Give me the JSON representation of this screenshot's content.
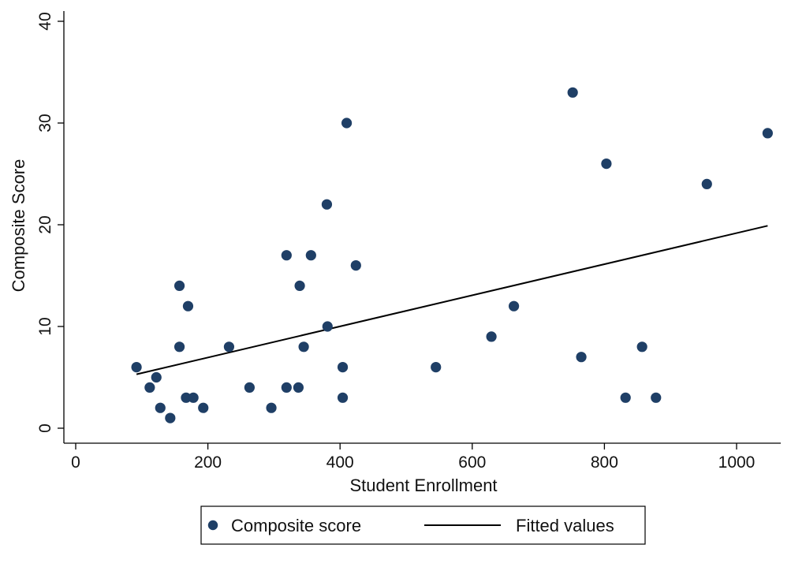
{
  "chart_data": {
    "type": "scatter",
    "title": "",
    "xlabel": "Student Enrollment",
    "ylabel": "Composite Score",
    "xlim": [
      0,
      1060
    ],
    "ylim": [
      0,
      40
    ],
    "xticks": [
      0,
      200,
      400,
      600,
      800,
      1000
    ],
    "yticks": [
      0,
      10,
      20,
      30,
      40
    ],
    "grid": false,
    "legend_position": "bottom",
    "colors": {
      "points": "#1f3f66",
      "line": "#000000",
      "axes": "#000000"
    },
    "series": [
      {
        "name": "Composite score",
        "kind": "scatter",
        "points": [
          [
            92,
            6
          ],
          [
            112,
            4
          ],
          [
            122,
            5
          ],
          [
            128,
            2
          ],
          [
            143,
            1
          ],
          [
            157,
            14
          ],
          [
            157,
            8
          ],
          [
            167,
            3
          ],
          [
            170,
            12
          ],
          [
            178,
            3
          ],
          [
            193,
            2
          ],
          [
            232,
            8
          ],
          [
            263,
            4
          ],
          [
            296,
            2
          ],
          [
            319,
            17
          ],
          [
            319,
            4
          ],
          [
            337,
            4
          ],
          [
            339,
            14
          ],
          [
            345,
            8
          ],
          [
            356,
            17
          ],
          [
            380,
            22
          ],
          [
            381,
            10
          ],
          [
            404,
            6
          ],
          [
            404,
            3
          ],
          [
            410,
            30
          ],
          [
            424,
            16
          ],
          [
            545,
            6
          ],
          [
            629,
            9
          ],
          [
            663,
            12
          ],
          [
            752,
            33
          ],
          [
            765,
            7
          ],
          [
            803,
            26
          ],
          [
            832,
            3
          ],
          [
            857,
            8
          ],
          [
            878,
            3
          ],
          [
            955,
            24
          ],
          [
            1047,
            29
          ]
        ]
      },
      {
        "name": "Fitted values",
        "kind": "line",
        "points": [
          [
            92,
            5.3
          ],
          [
            1047,
            19.9
          ]
        ]
      }
    ]
  }
}
